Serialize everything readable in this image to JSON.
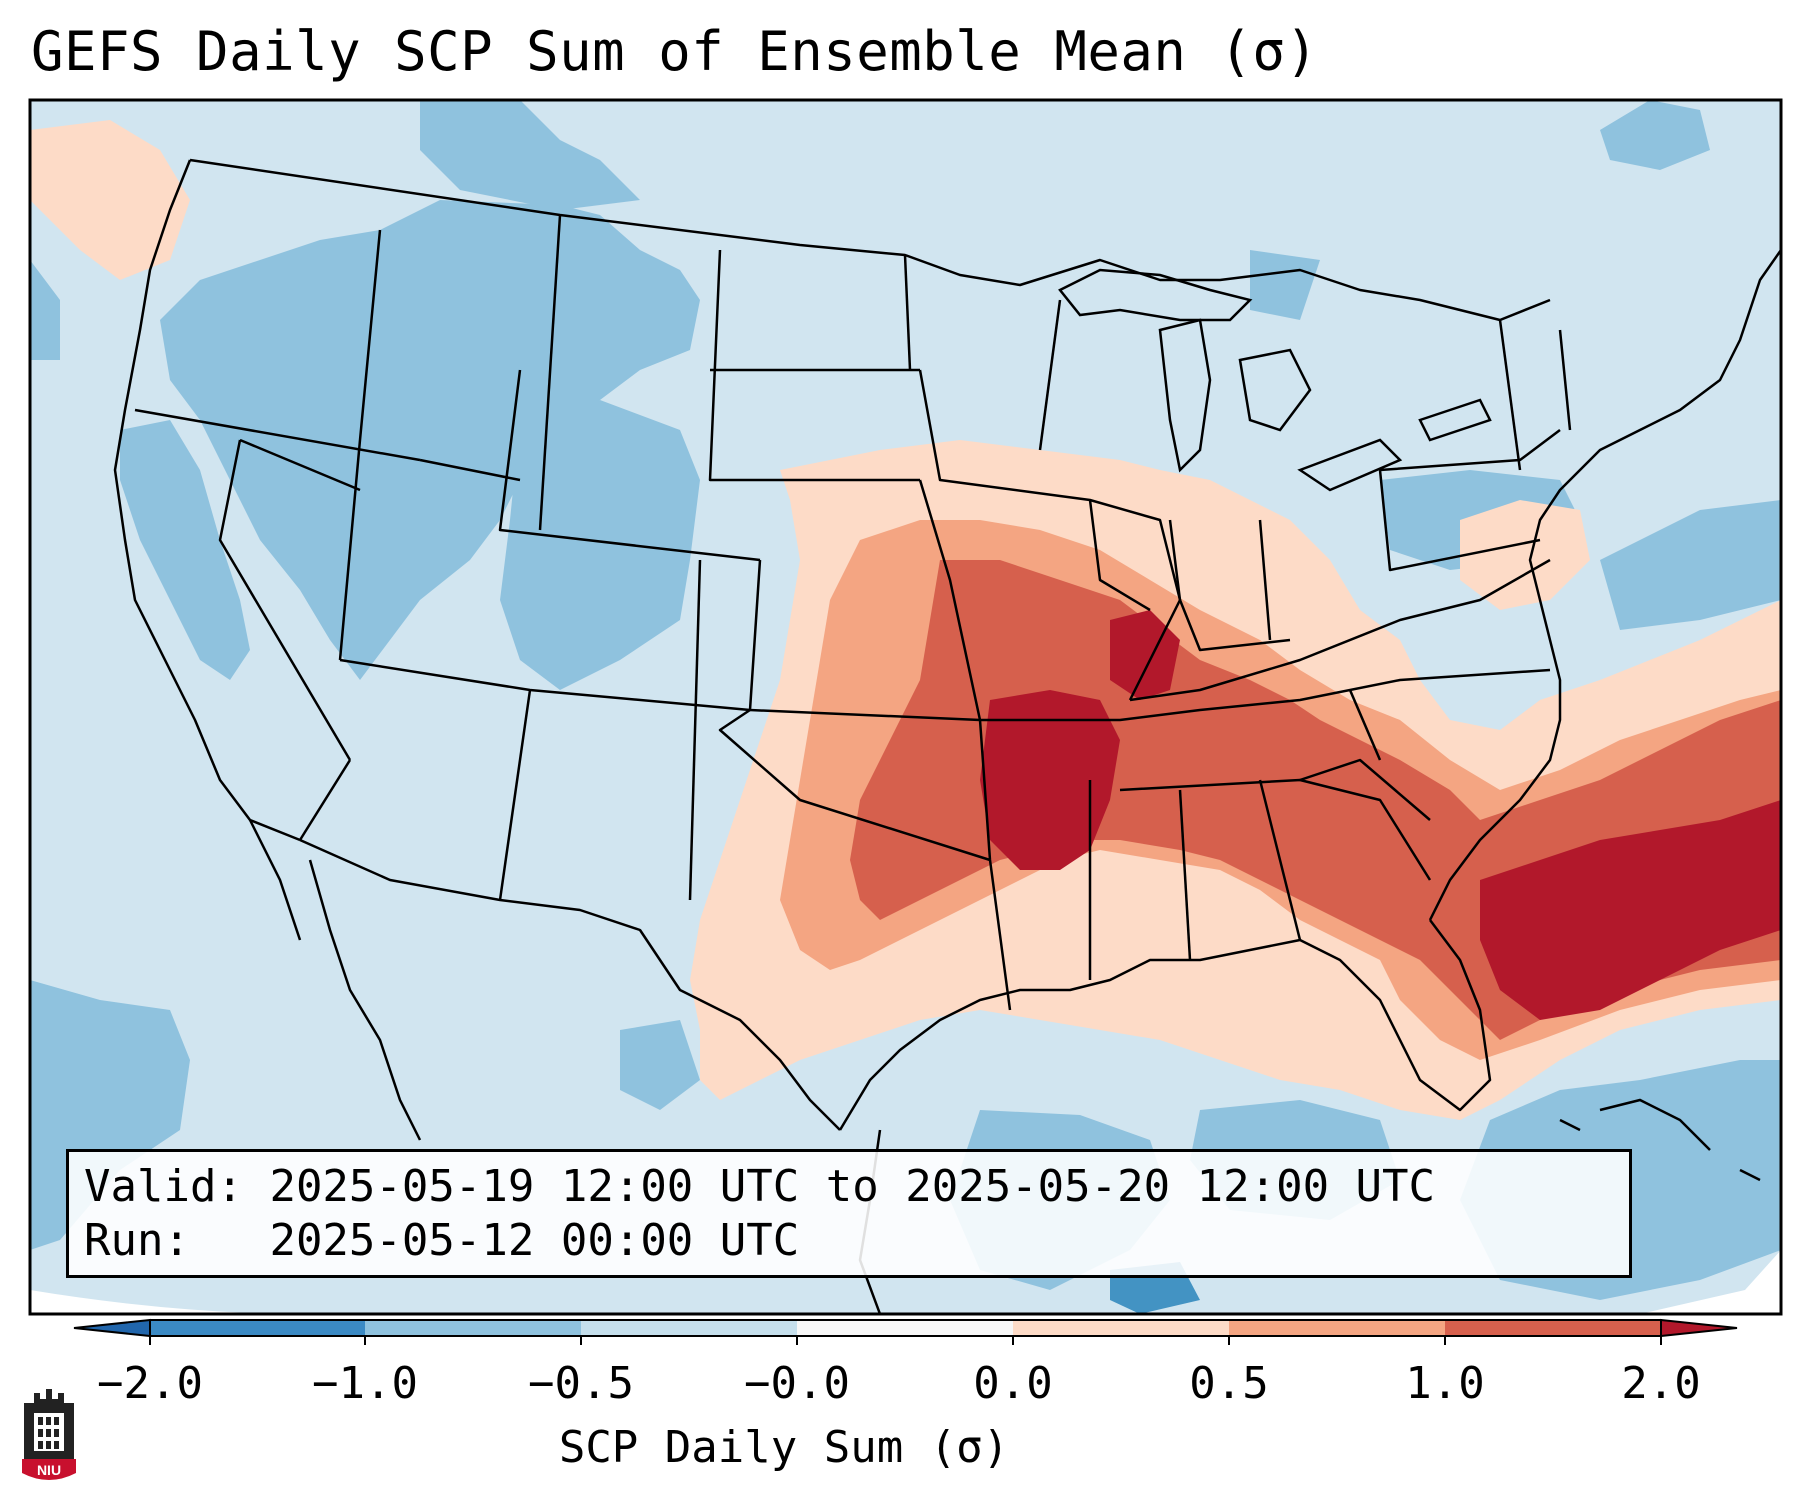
{
  "title": "GEFS Daily SCP Sum of Ensemble Mean (σ)",
  "info": {
    "valid_label": "Valid:",
    "valid_value": "2025-05-19 12:00 UTC to 2025-05-20 12:00 UTC",
    "run_label": "Run:",
    "run_value": "2025-05-12 00:00 UTC"
  },
  "colorbar": {
    "title": "SCP Daily Sum (σ)",
    "ticks": [
      "−2.0",
      "−1.0",
      "−0.5",
      "−0.0",
      "0.0",
      "0.5",
      "1.0",
      "2.0"
    ],
    "colors": [
      "#3b8ac4",
      "#8fc2de",
      "#d1e5f0",
      "#fddbc7",
      "#f4a582",
      "#d6604d",
      "#b2182b"
    ],
    "under_color": "#2166ac",
    "over_color": "#b2182b"
  },
  "map": {
    "projection": "Lambert conformal (CONUS)",
    "background_color": "#d1e5f0",
    "features": [
      "state borders",
      "coastlines",
      "country borders"
    ],
    "field_description": "Positive anomaly axis from the southern Plains through the Mid-South into the Southeast and western Atlantic; negative anomalies over the West and northern tier"
  },
  "logo_text": "NIU"
}
